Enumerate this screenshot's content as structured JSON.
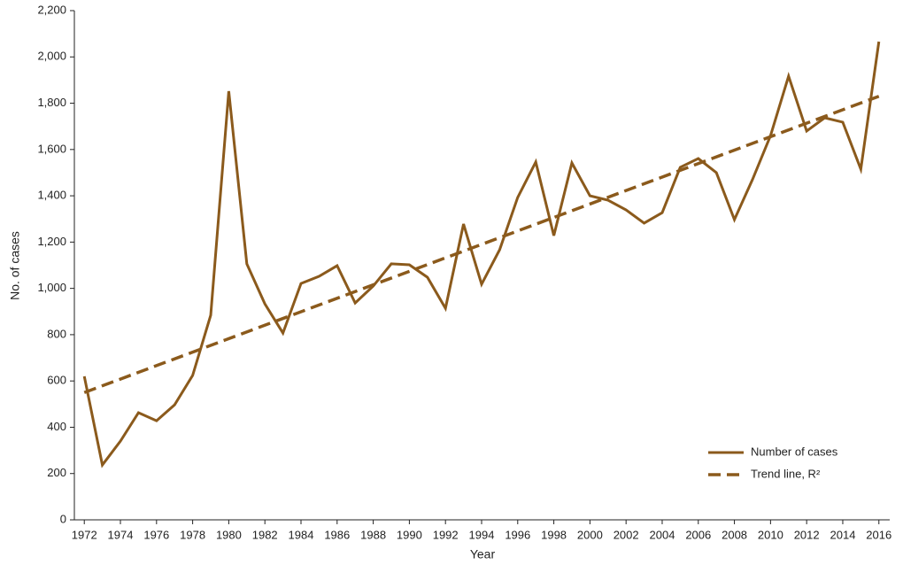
{
  "chart_data": {
    "type": "line",
    "x_label": "Year",
    "y_label": "No. of cases",
    "x": [
      1972,
      1973,
      1974,
      1975,
      1976,
      1977,
      1978,
      1979,
      1980,
      1981,
      1982,
      1983,
      1984,
      1985,
      1986,
      1987,
      1988,
      1989,
      1990,
      1991,
      1992,
      1993,
      1994,
      1995,
      1996,
      1997,
      1998,
      1999,
      2000,
      2001,
      2002,
      2003,
      2004,
      2005,
      2006,
      2007,
      2008,
      2009,
      2010,
      2011,
      2012,
      2013,
      2014,
      2015,
      2016
    ],
    "series": [
      {
        "name": "Number of cases",
        "color": "#8b5a1c",
        "dashed": false,
        "values": [
          620,
          237,
          340,
          463,
          428,
          497,
          624,
          884,
          1852,
          1106,
          933,
          807,
          1021,
          1052,
          1098,
          937,
          1010,
          1106,
          1102,
          1048,
          914,
          1278,
          1018,
          1167,
          1393,
          1546,
          1228,
          1542,
          1400,
          1381,
          1339,
          1282,
          1327,
          1523,
          1561,
          1500,
          1297,
          1470,
          1660,
          1917,
          1680,
          1737,
          1718,
          1515,
          2066
        ]
      },
      {
        "name": "Trend line, R²",
        "color": "#8b5a1c",
        "dashed": true,
        "x": [
          1972,
          2016
        ],
        "values": [
          550,
          1830
        ]
      }
    ],
    "xlim": [
      1971.45,
      2016.6
    ],
    "xticks": [
      1972,
      1974,
      1976,
      1978,
      1980,
      1982,
      1984,
      1986,
      1988,
      1990,
      1992,
      1994,
      1996,
      1998,
      2000,
      2002,
      2004,
      2006,
      2008,
      2010,
      2012,
      2014,
      2016
    ],
    "ylim": [
      0,
      2200
    ],
    "yticks": [
      0,
      200,
      400,
      600,
      800,
      {
        "value": 1000,
        "label": "1,000"
      },
      {
        "value": 1200,
        "label": "1,200"
      },
      {
        "value": 1400,
        "label": "1,400"
      },
      {
        "value": 1600,
        "label": "1,600"
      },
      {
        "value": 1800,
        "label": "1,800"
      },
      {
        "value": 2000,
        "label": "2,000"
      },
      {
        "value": 2200,
        "label": "2,200"
      }
    ],
    "legend": "lower right"
  }
}
